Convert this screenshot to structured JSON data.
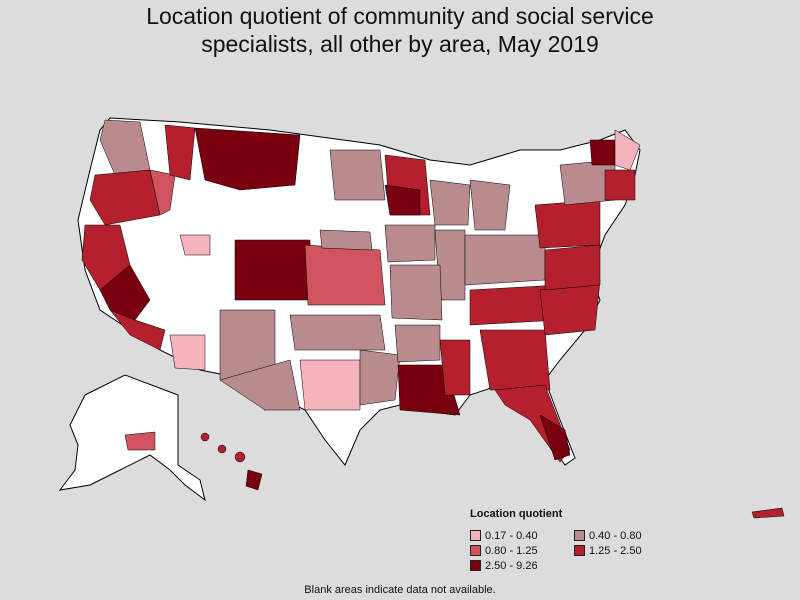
{
  "title": {
    "line1": "Location quotient of community and social service",
    "line2": "specialists, all other by area, May 2019"
  },
  "legend": {
    "title": "Location quotient",
    "items": [
      {
        "label": "0.17 - 0.40",
        "color": "#f5b3bd"
      },
      {
        "label": "0.40 - 0.80",
        "color": "#b98b8e"
      },
      {
        "label": "0.80 - 1.25",
        "color": "#d0545f"
      },
      {
        "label": "1.25 - 2.50",
        "color": "#b5202e"
      },
      {
        "label": "2.50 - 9.26",
        "color": "#7a0010"
      }
    ]
  },
  "footnote": "Blank areas indicate data not available.",
  "map_colors": {
    "background": "#dcdcdc",
    "no_data": "#ffffff",
    "border": "#000000"
  }
}
